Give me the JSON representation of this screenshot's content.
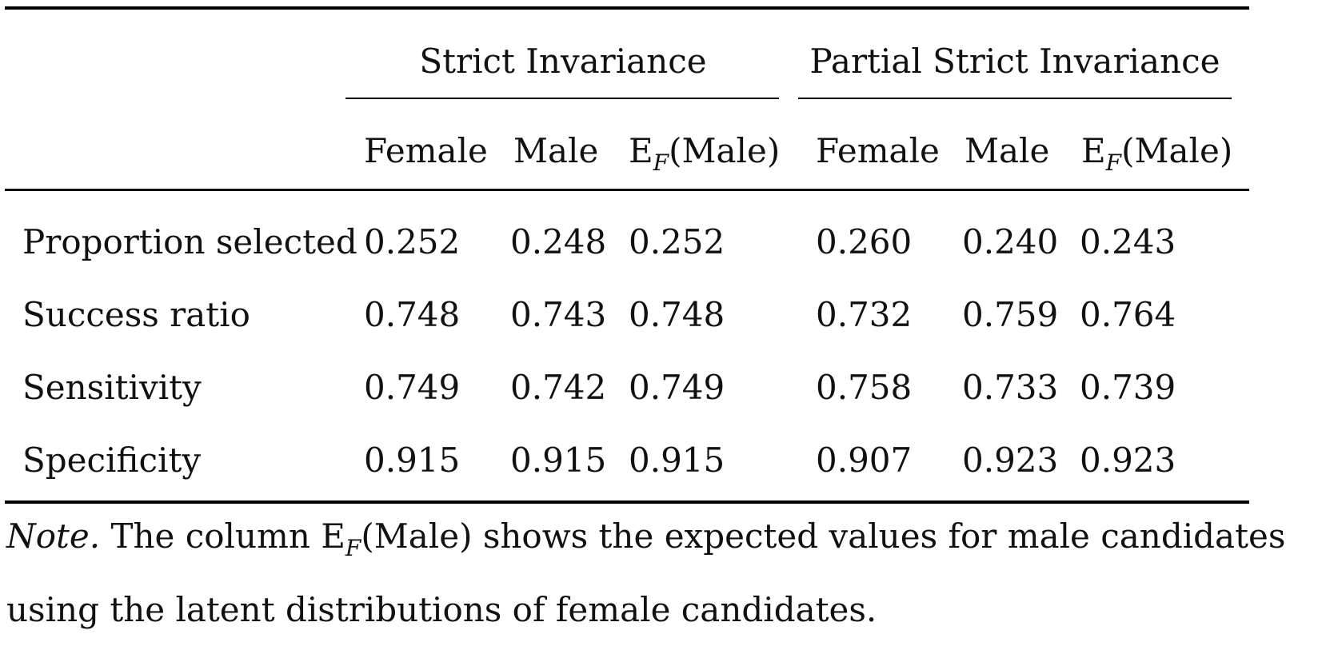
{
  "table": {
    "group_headers": [
      "Strict Invariance",
      "Partial Strict Invariance"
    ],
    "column_headers": [
      {
        "main": "Female",
        "sub": "",
        "suffix": ""
      },
      {
        "main": "Male",
        "sub": "",
        "suffix": ""
      },
      {
        "main": "E",
        "sub": "F",
        "suffix": "(Male)"
      },
      {
        "main": "Female",
        "sub": "",
        "suffix": ""
      },
      {
        "main": "Male",
        "sub": "",
        "suffix": ""
      },
      {
        "main": "E",
        "sub": "F",
        "suffix": "(Male)"
      }
    ],
    "rows": [
      {
        "label": "Proportion selected",
        "values": [
          "0.252",
          "0.248",
          "0.252",
          "0.260",
          "0.240",
          "0.243"
        ]
      },
      {
        "label": "Success ratio",
        "values": [
          "0.748",
          "0.743",
          "0.748",
          "0.732",
          "0.759",
          "0.764"
        ]
      },
      {
        "label": "Sensitivity",
        "values": [
          "0.749",
          "0.742",
          "0.749",
          "0.758",
          "0.733",
          "0.739"
        ]
      },
      {
        "label": "Specificity",
        "values": [
          "0.915",
          "0.915",
          "0.915",
          "0.907",
          "0.923",
          "0.923"
        ]
      }
    ]
  },
  "note": {
    "label": "Note.",
    "line1_before": " The column E",
    "line1_sub": "F",
    "line1_after": "(Male) shows the expected values for male candidates",
    "line2": "using the latent distributions of female candidates."
  }
}
